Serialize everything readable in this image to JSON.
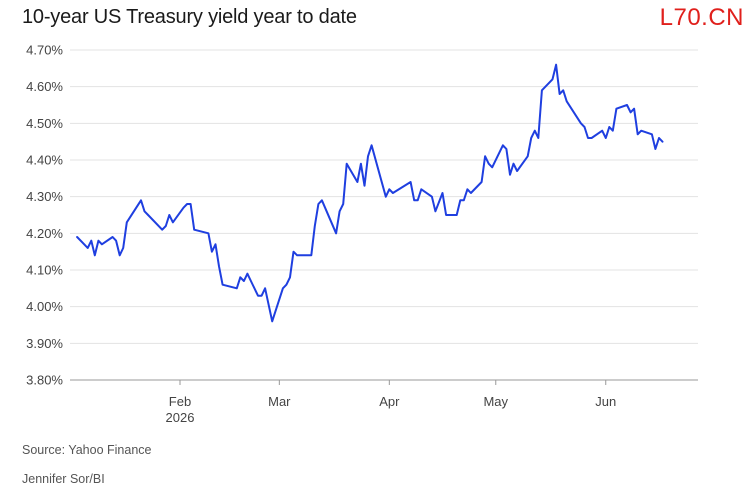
{
  "title": "10-year US Treasury yield year to date",
  "watermark": "L70.CN",
  "source": "Source: Yahoo Finance",
  "credit": "Jennifer Sor/BI",
  "colors": {
    "line": "#1f3fe0",
    "grid": "#e3e3e3",
    "axis": "#999999",
    "watermark": "#e0201c"
  },
  "chart_data": {
    "type": "line",
    "title": "10-year US Treasury yield year to date",
    "xlabel": "",
    "ylabel": "",
    "grid": true,
    "ylim": [
      3.8,
      4.7
    ],
    "yticks": [
      {
        "value": 4.7,
        "label": "4.70%"
      },
      {
        "value": 4.6,
        "label": "4.60%"
      },
      {
        "value": 4.5,
        "label": "4.50%"
      },
      {
        "value": 4.4,
        "label": "4.40%"
      },
      {
        "value": 4.3,
        "label": "4.30%"
      },
      {
        "value": 4.2,
        "label": "4.20%"
      },
      {
        "value": 4.1,
        "label": "4.10%"
      },
      {
        "value": 4.0,
        "label": "4.00%"
      },
      {
        "value": 3.9,
        "label": "3.90%"
      },
      {
        "value": 3.8,
        "label": "3.80%"
      }
    ],
    "xlim": [
      "2026-01-01",
      "2026-06-27"
    ],
    "xticks": [
      {
        "date": "2026-02-01",
        "label": "Feb",
        "sublabel": "2026"
      },
      {
        "date": "2026-03-01",
        "label": "Mar",
        "sublabel": ""
      },
      {
        "date": "2026-04-01",
        "label": "Apr",
        "sublabel": ""
      },
      {
        "date": "2026-05-01",
        "label": "May",
        "sublabel": ""
      },
      {
        "date": "2026-06-01",
        "label": "Jun",
        "sublabel": ""
      }
    ],
    "series": [
      {
        "points": [
          [
            "2026-01-03",
            4.19
          ],
          [
            "2026-01-05",
            4.17
          ],
          [
            "2026-01-06",
            4.16
          ],
          [
            "2026-01-07",
            4.18
          ],
          [
            "2026-01-08",
            4.14
          ],
          [
            "2026-01-09",
            4.18
          ],
          [
            "2026-01-10",
            4.17
          ],
          [
            "2026-01-13",
            4.19
          ],
          [
            "2026-01-14",
            4.18
          ],
          [
            "2026-01-15",
            4.14
          ],
          [
            "2026-01-16",
            4.16
          ],
          [
            "2026-01-17",
            4.23
          ],
          [
            "2026-01-21",
            4.29
          ],
          [
            "2026-01-22",
            4.26
          ],
          [
            "2026-01-23",
            4.25
          ],
          [
            "2026-01-27",
            4.21
          ],
          [
            "2026-01-28",
            4.22
          ],
          [
            "2026-01-29",
            4.25
          ],
          [
            "2026-01-30",
            4.23
          ],
          [
            "2026-02-02",
            4.27
          ],
          [
            "2026-02-03",
            4.28
          ],
          [
            "2026-02-04",
            4.28
          ],
          [
            "2026-02-05",
            4.21
          ],
          [
            "2026-02-09",
            4.2
          ],
          [
            "2026-02-10",
            4.15
          ],
          [
            "2026-02-11",
            4.17
          ],
          [
            "2026-02-12",
            4.11
          ],
          [
            "2026-02-13",
            4.06
          ],
          [
            "2026-02-17",
            4.05
          ],
          [
            "2026-02-18",
            4.08
          ],
          [
            "2026-02-19",
            4.07
          ],
          [
            "2026-02-20",
            4.09
          ],
          [
            "2026-02-21",
            4.07
          ],
          [
            "2026-02-23",
            4.03
          ],
          [
            "2026-02-24",
            4.03
          ],
          [
            "2026-02-25",
            4.05
          ],
          [
            "2026-02-27",
            3.96
          ],
          [
            "2026-03-02",
            4.05
          ],
          [
            "2026-03-03",
            4.06
          ],
          [
            "2026-03-04",
            4.08
          ],
          [
            "2026-03-05",
            4.15
          ],
          [
            "2026-03-06",
            4.14
          ],
          [
            "2026-03-10",
            4.14
          ],
          [
            "2026-03-11",
            4.22
          ],
          [
            "2026-03-12",
            4.28
          ],
          [
            "2026-03-13",
            4.29
          ],
          [
            "2026-03-17",
            4.2
          ],
          [
            "2026-03-18",
            4.26
          ],
          [
            "2026-03-19",
            4.28
          ],
          [
            "2026-03-20",
            4.39
          ],
          [
            "2026-03-23",
            4.34
          ],
          [
            "2026-03-24",
            4.39
          ],
          [
            "2026-03-25",
            4.33
          ],
          [
            "2026-03-26",
            4.41
          ],
          [
            "2026-03-27",
            4.44
          ],
          [
            "2026-03-31",
            4.3
          ],
          [
            "2026-04-01",
            4.32
          ],
          [
            "2026-04-02",
            4.31
          ],
          [
            "2026-04-07",
            4.34
          ],
          [
            "2026-04-08",
            4.29
          ],
          [
            "2026-04-09",
            4.29
          ],
          [
            "2026-04-10",
            4.32
          ],
          [
            "2026-04-13",
            4.3
          ],
          [
            "2026-04-14",
            4.26
          ],
          [
            "2026-04-16",
            4.31
          ],
          [
            "2026-04-17",
            4.25
          ],
          [
            "2026-04-20",
            4.25
          ],
          [
            "2026-04-21",
            4.29
          ],
          [
            "2026-04-22",
            4.29
          ],
          [
            "2026-04-23",
            4.32
          ],
          [
            "2026-04-24",
            4.31
          ],
          [
            "2026-04-27",
            4.34
          ],
          [
            "2026-04-28",
            4.41
          ],
          [
            "2026-04-29",
            4.39
          ],
          [
            "2026-04-30",
            4.38
          ],
          [
            "2026-05-03",
            4.44
          ],
          [
            "2026-05-04",
            4.43
          ],
          [
            "2026-05-05",
            4.36
          ],
          [
            "2026-05-06",
            4.39
          ],
          [
            "2026-05-07",
            4.37
          ],
          [
            "2026-05-10",
            4.41
          ],
          [
            "2026-05-11",
            4.46
          ],
          [
            "2026-05-12",
            4.48
          ],
          [
            "2026-05-13",
            4.46
          ],
          [
            "2026-05-14",
            4.59
          ],
          [
            "2026-05-17",
            4.62
          ],
          [
            "2026-05-18",
            4.66
          ],
          [
            "2026-05-19",
            4.58
          ],
          [
            "2026-05-20",
            4.59
          ],
          [
            "2026-05-21",
            4.56
          ],
          [
            "2026-05-25",
            4.5
          ],
          [
            "2026-05-26",
            4.49
          ],
          [
            "2026-05-27",
            4.46
          ],
          [
            "2026-05-28",
            4.46
          ],
          [
            "2026-05-31",
            4.48
          ],
          [
            "2026-06-01",
            4.46
          ],
          [
            "2026-06-02",
            4.49
          ],
          [
            "2026-06-03",
            4.48
          ],
          [
            "2026-06-04",
            4.54
          ],
          [
            "2026-06-07",
            4.55
          ],
          [
            "2026-06-08",
            4.53
          ],
          [
            "2026-06-09",
            4.54
          ],
          [
            "2026-06-10",
            4.47
          ],
          [
            "2026-06-11",
            4.48
          ],
          [
            "2026-06-14",
            4.47
          ],
          [
            "2026-06-15",
            4.43
          ],
          [
            "2026-06-16",
            4.46
          ],
          [
            "2026-06-17",
            4.45
          ]
        ]
      }
    ]
  }
}
